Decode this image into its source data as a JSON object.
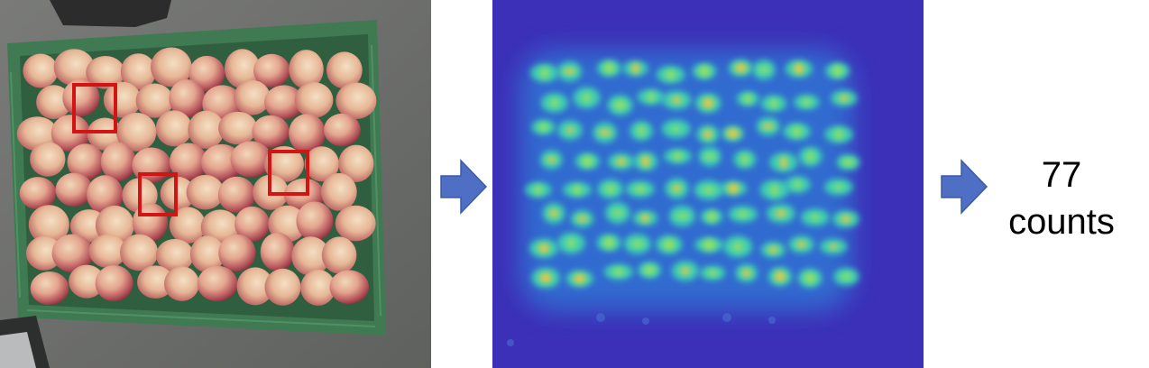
{
  "result": {
    "count_value": "77",
    "count_unit": "counts"
  },
  "colors": {
    "arrow_fill": "#4f6fc4",
    "arrow_stroke": "#3d5aa8",
    "detection_box": "#d21414",
    "density_background": "#3c2fb8",
    "crate_green": "#3f7a52",
    "floor_gray": "#6e706d"
  },
  "icons": {
    "arrow_1": "right-arrow-icon",
    "arrow_2": "right-arrow-icon"
  }
}
